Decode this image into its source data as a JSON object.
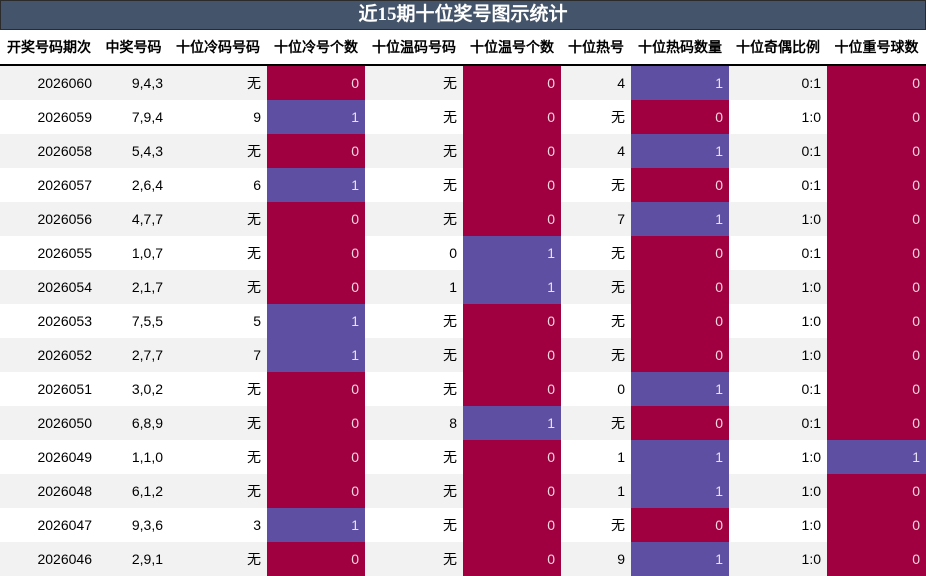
{
  "title": "近15期十位奖号图示统计",
  "colors": {
    "title_bg": "#44546a",
    "zero_cell": "#a0003f",
    "one_cell": "#5e4fa2",
    "row_alt": "#f2f2f2"
  },
  "headers": [
    "开奖号码期次",
    "中奖号码",
    "十位冷码号码",
    "十位冷号个数",
    "十位温码号码",
    "十位温号个数",
    "十位热号",
    "十位热码数量",
    "十位奇偶比例",
    "十位重号球数"
  ],
  "rows": [
    {
      "issue": "2026060",
      "numbers": "9,4,3",
      "cold_code": "无",
      "cold_count": "0",
      "warm_code": "无",
      "warm_count": "0",
      "hot_code": "4",
      "hot_count": "1",
      "odd_even": "0:1",
      "repeat_count": "0"
    },
    {
      "issue": "2026059",
      "numbers": "7,9,4",
      "cold_code": "9",
      "cold_count": "1",
      "warm_code": "无",
      "warm_count": "0",
      "hot_code": "无",
      "hot_count": "0",
      "odd_even": "1:0",
      "repeat_count": "0"
    },
    {
      "issue": "2026058",
      "numbers": "5,4,3",
      "cold_code": "无",
      "cold_count": "0",
      "warm_code": "无",
      "warm_count": "0",
      "hot_code": "4",
      "hot_count": "1",
      "odd_even": "0:1",
      "repeat_count": "0"
    },
    {
      "issue": "2026057",
      "numbers": "2,6,4",
      "cold_code": "6",
      "cold_count": "1",
      "warm_code": "无",
      "warm_count": "0",
      "hot_code": "无",
      "hot_count": "0",
      "odd_even": "0:1",
      "repeat_count": "0"
    },
    {
      "issue": "2026056",
      "numbers": "4,7,7",
      "cold_code": "无",
      "cold_count": "0",
      "warm_code": "无",
      "warm_count": "0",
      "hot_code": "7",
      "hot_count": "1",
      "odd_even": "1:0",
      "repeat_count": "0"
    },
    {
      "issue": "2026055",
      "numbers": "1,0,7",
      "cold_code": "无",
      "cold_count": "0",
      "warm_code": "0",
      "warm_count": "1",
      "hot_code": "无",
      "hot_count": "0",
      "odd_even": "0:1",
      "repeat_count": "0"
    },
    {
      "issue": "2026054",
      "numbers": "2,1,7",
      "cold_code": "无",
      "cold_count": "0",
      "warm_code": "1",
      "warm_count": "1",
      "hot_code": "无",
      "hot_count": "0",
      "odd_even": "1:0",
      "repeat_count": "0"
    },
    {
      "issue": "2026053",
      "numbers": "7,5,5",
      "cold_code": "5",
      "cold_count": "1",
      "warm_code": "无",
      "warm_count": "0",
      "hot_code": "无",
      "hot_count": "0",
      "odd_even": "1:0",
      "repeat_count": "0"
    },
    {
      "issue": "2026052",
      "numbers": "2,7,7",
      "cold_code": "7",
      "cold_count": "1",
      "warm_code": "无",
      "warm_count": "0",
      "hot_code": "无",
      "hot_count": "0",
      "odd_even": "1:0",
      "repeat_count": "0"
    },
    {
      "issue": "2026051",
      "numbers": "3,0,2",
      "cold_code": "无",
      "cold_count": "0",
      "warm_code": "无",
      "warm_count": "0",
      "hot_code": "0",
      "hot_count": "1",
      "odd_even": "0:1",
      "repeat_count": "0"
    },
    {
      "issue": "2026050",
      "numbers": "6,8,9",
      "cold_code": "无",
      "cold_count": "0",
      "warm_code": "8",
      "warm_count": "1",
      "hot_code": "无",
      "hot_count": "0",
      "odd_even": "0:1",
      "repeat_count": "0"
    },
    {
      "issue": "2026049",
      "numbers": "1,1,0",
      "cold_code": "无",
      "cold_count": "0",
      "warm_code": "无",
      "warm_count": "0",
      "hot_code": "1",
      "hot_count": "1",
      "odd_even": "1:0",
      "repeat_count": "1"
    },
    {
      "issue": "2026048",
      "numbers": "6,1,2",
      "cold_code": "无",
      "cold_count": "0",
      "warm_code": "无",
      "warm_count": "0",
      "hot_code": "1",
      "hot_count": "1",
      "odd_even": "1:0",
      "repeat_count": "0"
    },
    {
      "issue": "2026047",
      "numbers": "9,3,6",
      "cold_code": "3",
      "cold_count": "1",
      "warm_code": "无",
      "warm_count": "0",
      "hot_code": "无",
      "hot_count": "0",
      "odd_even": "1:0",
      "repeat_count": "0"
    },
    {
      "issue": "2026046",
      "numbers": "2,9,1",
      "cold_code": "无",
      "cold_count": "0",
      "warm_code": "无",
      "warm_count": "0",
      "hot_code": "9",
      "hot_count": "1",
      "odd_even": "1:0",
      "repeat_count": "0"
    }
  ]
}
